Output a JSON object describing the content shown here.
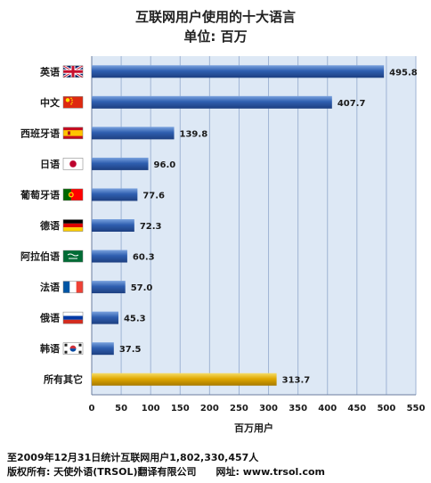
{
  "chart_data": {
    "type": "bar",
    "orientation": "horizontal",
    "title": "互联网用户使用的十大语言",
    "subtitle": "单位: 百万",
    "xlabel": "百万用户",
    "xlim": [
      0,
      550
    ],
    "xticks": [
      0,
      50,
      100,
      150,
      200,
      250,
      300,
      350,
      400,
      450,
      500,
      550
    ],
    "grid": true,
    "categories": [
      "英语",
      "中文",
      "西班牙语",
      "日语",
      "葡萄牙语",
      "德语",
      "阿拉伯语",
      "法语",
      "俄语",
      "韩语",
      "所有其它"
    ],
    "values": [
      495.8,
      407.7,
      139.8,
      96.0,
      77.6,
      72.3,
      60.3,
      57.0,
      45.3,
      37.5,
      313.7
    ],
    "value_labels": [
      "495.8",
      "407.7",
      "139.8",
      "96.0",
      "77.6",
      "72.3",
      "60.3",
      "57.0",
      "45.3",
      "37.5",
      "313.7"
    ],
    "flags": [
      "uk-flag-icon",
      "china-flag-icon",
      "spain-flag-icon",
      "japan-flag-icon",
      "portugal-flag-icon",
      "germany-flag-icon",
      "saudi-flag-icon",
      "france-flag-icon",
      "russia-flag-icon",
      "korea-flag-icon",
      ""
    ],
    "colors": {
      "bar": "#2f5fb0",
      "bar_highlight": "#7aa2de",
      "other_bar": "#e0a800",
      "other_highlight": "#f5dd6a",
      "plot_background": "#dde8f5",
      "grid": "#9fb4d4"
    }
  },
  "footer": {
    "line1": "至2009年12月31日统计互联网用户1,802,330,457人",
    "line2_copyright": "版权所有: 天使外语(TRSOL)翻译有限公司",
    "line2_site": "网址: www.trsol.com"
  }
}
